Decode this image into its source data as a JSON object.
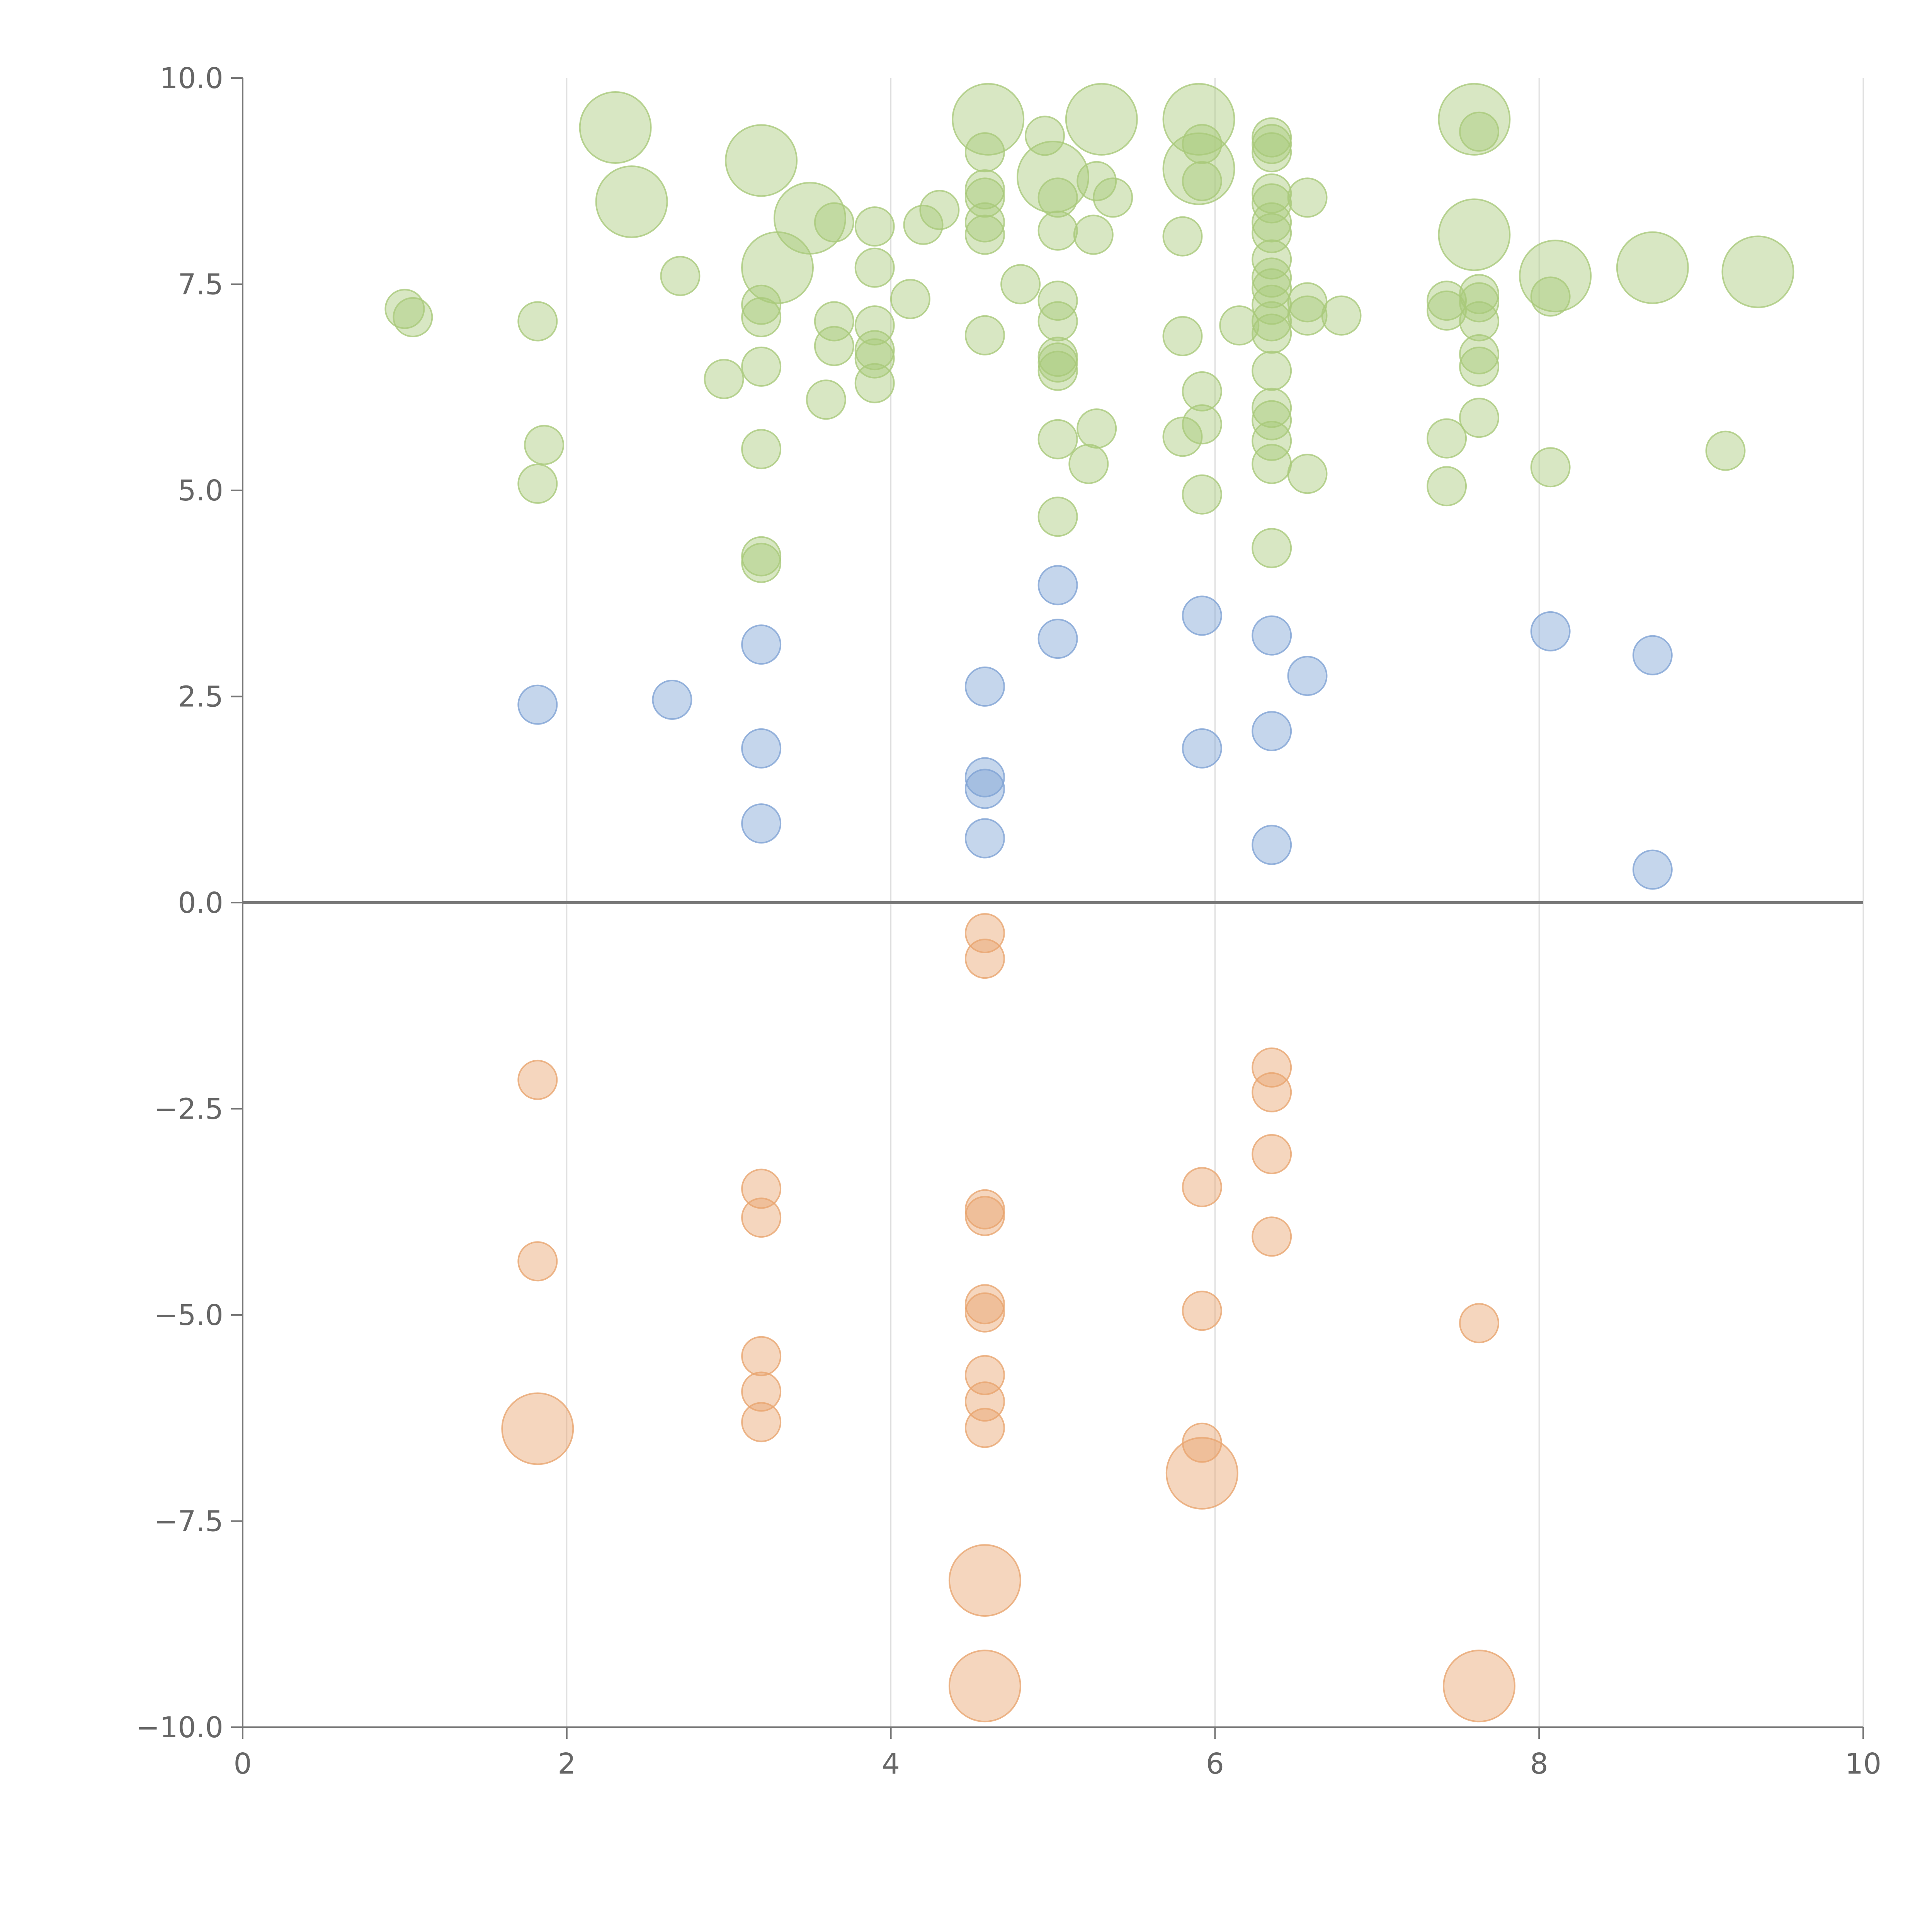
{
  "chart_data": {
    "type": "scatter",
    "title": "",
    "xlabel": "",
    "ylabel": "",
    "xlim": [
      0,
      10
    ],
    "ylim": [
      -10,
      10
    ],
    "x_ticks": [
      0,
      2,
      4,
      6,
      8,
      10
    ],
    "x_tick_labels": [
      "0",
      "2",
      "4",
      "6",
      "8",
      "10"
    ],
    "y_ticks": [
      10,
      7.5,
      5,
      2.5,
      0,
      -2.5,
      -5,
      -7.5,
      -10
    ],
    "y_tick_labels": [
      "10.0",
      "7.5",
      "5.0",
      "2.5",
      "0.0",
      "−2.5",
      "−5.0",
      "−7.5",
      "−10.0"
    ],
    "vertical_grid": true,
    "zero_line": true,
    "legend": "none",
    "colors": {
      "green": "#a9c97a",
      "blue": "#7fa3d4",
      "orange": "#e8a56f",
      "axis": "#777777",
      "grid": "#dddddd",
      "tick_text": "#666666"
    },
    "series": [
      {
        "name": "green",
        "color": "#a9c97a",
        "points": [
          [
            2.3,
            9.4,
            3
          ],
          [
            2.4,
            8.5,
            3
          ],
          [
            3.2,
            9.0,
            3
          ],
          [
            3.3,
            7.7,
            3
          ],
          [
            3.5,
            8.3,
            3
          ],
          [
            4.6,
            9.5,
            3
          ],
          [
            5.3,
            9.5,
            3
          ],
          [
            5.0,
            8.8,
            3
          ],
          [
            5.9,
            9.5,
            3
          ],
          [
            5.9,
            8.9,
            3
          ],
          [
            7.6,
            9.5,
            3
          ],
          [
            7.6,
            8.1,
            3
          ],
          [
            8.1,
            7.6,
            3
          ],
          [
            8.7,
            7.7,
            3
          ],
          [
            9.35,
            7.65,
            3
          ],
          [
            1.0,
            7.2,
            1
          ],
          [
            1.05,
            7.1,
            1
          ],
          [
            1.82,
            7.05,
            1
          ],
          [
            1.86,
            5.55,
            1
          ],
          [
            1.82,
            5.08,
            1
          ],
          [
            2.7,
            7.6,
            1
          ],
          [
            2.97,
            6.35,
            1
          ],
          [
            3.2,
            7.25,
            1
          ],
          [
            3.2,
            7.1,
            1
          ],
          [
            3.2,
            6.5,
            1
          ],
          [
            3.2,
            5.5,
            1
          ],
          [
            3.2,
            4.2,
            1
          ],
          [
            3.2,
            4.12,
            1
          ],
          [
            3.6,
            6.1,
            1
          ],
          [
            3.65,
            7.05,
            1
          ],
          [
            3.65,
            6.75,
            1
          ],
          [
            3.65,
            8.25,
            1
          ],
          [
            3.9,
            8.2,
            1
          ],
          [
            3.9,
            7.7,
            1
          ],
          [
            3.9,
            7.0,
            1
          ],
          [
            3.9,
            6.7,
            1
          ],
          [
            3.9,
            6.6,
            1
          ],
          [
            3.9,
            6.3,
            1
          ],
          [
            4.12,
            7.32,
            1
          ],
          [
            4.2,
            8.22,
            1
          ],
          [
            4.3,
            8.4,
            1
          ],
          [
            4.58,
            9.1,
            1
          ],
          [
            4.58,
            8.65,
            1
          ],
          [
            4.58,
            8.55,
            1
          ],
          [
            4.58,
            8.25,
            1
          ],
          [
            4.58,
            8.1,
            1
          ],
          [
            4.58,
            6.88,
            1
          ],
          [
            4.8,
            7.5,
            1
          ],
          [
            4.95,
            9.3,
            1
          ],
          [
            5.03,
            8.55,
            1
          ],
          [
            5.03,
            8.15,
            1
          ],
          [
            5.03,
            7.3,
            1
          ],
          [
            5.03,
            7.05,
            1
          ],
          [
            5.03,
            6.62,
            1
          ],
          [
            5.03,
            6.55,
            1
          ],
          [
            5.03,
            6.45,
            1
          ],
          [
            5.03,
            5.62,
            1
          ],
          [
            5.03,
            4.68,
            1
          ],
          [
            5.25,
            8.1,
            1
          ],
          [
            5.27,
            8.75,
            1
          ],
          [
            5.37,
            8.55,
            1
          ],
          [
            5.27,
            5.75,
            1
          ],
          [
            5.22,
            5.32,
            1
          ],
          [
            5.8,
            8.08,
            1
          ],
          [
            5.8,
            6.87,
            1
          ],
          [
            5.8,
            5.65,
            1
          ],
          [
            5.92,
            9.2,
            1
          ],
          [
            5.92,
            8.75,
            1
          ],
          [
            5.92,
            6.2,
            1
          ],
          [
            5.92,
            5.8,
            1
          ],
          [
            5.92,
            4.95,
            1
          ],
          [
            6.15,
            7.0,
            1
          ],
          [
            6.35,
            9.28,
            1
          ],
          [
            6.35,
            9.2,
            1
          ],
          [
            6.35,
            9.1,
            1
          ],
          [
            6.35,
            8.6,
            1
          ],
          [
            6.35,
            8.48,
            1
          ],
          [
            6.35,
            8.25,
            1
          ],
          [
            6.35,
            8.12,
            1
          ],
          [
            6.35,
            7.8,
            1
          ],
          [
            6.35,
            7.58,
            1
          ],
          [
            6.35,
            7.45,
            1
          ],
          [
            6.35,
            7.25,
            1
          ],
          [
            6.35,
            7.05,
            1
          ],
          [
            6.35,
            6.9,
            1
          ],
          [
            6.35,
            6.45,
            1
          ],
          [
            6.35,
            6.0,
            1
          ],
          [
            6.35,
            5.85,
            1
          ],
          [
            6.35,
            5.6,
            1
          ],
          [
            6.35,
            5.32,
            1
          ],
          [
            6.35,
            4.3,
            1
          ],
          [
            6.57,
            8.55,
            1
          ],
          [
            6.57,
            7.28,
            1
          ],
          [
            6.57,
            7.12,
            1
          ],
          [
            6.57,
            5.2,
            1
          ],
          [
            6.78,
            7.12,
            1
          ],
          [
            7.43,
            7.3,
            1
          ],
          [
            7.43,
            7.18,
            1
          ],
          [
            7.43,
            5.63,
            1
          ],
          [
            7.43,
            5.05,
            1
          ],
          [
            7.63,
            9.35,
            1
          ],
          [
            7.63,
            7.38,
            1
          ],
          [
            7.63,
            7.28,
            1
          ],
          [
            7.63,
            7.05,
            1
          ],
          [
            7.63,
            6.65,
            1
          ],
          [
            7.63,
            6.5,
            1
          ],
          [
            7.63,
            5.88,
            1
          ],
          [
            8.07,
            7.35,
            1
          ],
          [
            8.07,
            5.28,
            1
          ],
          [
            9.15,
            5.48,
            1
          ]
        ]
      },
      {
        "name": "blue",
        "color": "#7fa3d4",
        "points": [
          [
            1.82,
            2.4,
            1
          ],
          [
            2.65,
            2.46,
            1
          ],
          [
            3.2,
            3.13,
            1
          ],
          [
            3.2,
            1.87,
            1
          ],
          [
            3.2,
            0.96,
            1
          ],
          [
            4.58,
            2.62,
            1
          ],
          [
            4.58,
            1.52,
            1
          ],
          [
            4.58,
            1.38,
            1
          ],
          [
            4.58,
            0.78,
            1
          ],
          [
            5.03,
            3.85,
            1
          ],
          [
            5.03,
            3.2,
            1
          ],
          [
            5.92,
            3.48,
            1
          ],
          [
            5.92,
            1.87,
            1
          ],
          [
            6.35,
            3.24,
            1
          ],
          [
            6.35,
            2.08,
            1
          ],
          [
            6.35,
            0.7,
            1
          ],
          [
            6.57,
            2.75,
            1
          ],
          [
            8.07,
            3.29,
            1
          ],
          [
            8.7,
            3.0,
            1
          ],
          [
            8.7,
            0.4,
            1
          ]
        ]
      },
      {
        "name": "orange",
        "color": "#e8a56f",
        "points": [
          [
            1.82,
            -2.15,
            1
          ],
          [
            1.82,
            -4.35,
            1
          ],
          [
            1.82,
            -6.38,
            3
          ],
          [
            3.2,
            -3.47,
            1
          ],
          [
            3.2,
            -3.82,
            1
          ],
          [
            3.2,
            -5.5,
            1
          ],
          [
            3.2,
            -5.93,
            1
          ],
          [
            3.2,
            -6.3,
            1
          ],
          [
            4.58,
            -0.37,
            1
          ],
          [
            4.58,
            -0.68,
            1
          ],
          [
            4.58,
            -3.72,
            1
          ],
          [
            4.58,
            -3.8,
            1
          ],
          [
            4.58,
            -4.87,
            1
          ],
          [
            4.58,
            -4.97,
            1
          ],
          [
            4.58,
            -5.73,
            1
          ],
          [
            4.58,
            -6.05,
            1
          ],
          [
            4.58,
            -6.37,
            1
          ],
          [
            4.58,
            -8.22,
            3
          ],
          [
            4.58,
            -9.5,
            3
          ],
          [
            5.92,
            -3.45,
            1
          ],
          [
            5.92,
            -4.95,
            1
          ],
          [
            5.92,
            -6.55,
            1
          ],
          [
            5.92,
            -6.92,
            3
          ],
          [
            6.35,
            -2.0,
            1
          ],
          [
            6.35,
            -2.3,
            1
          ],
          [
            6.35,
            -3.05,
            1
          ],
          [
            6.35,
            -4.05,
            1
          ],
          [
            7.63,
            -5.1,
            1
          ],
          [
            7.63,
            -9.5,
            3
          ]
        ]
      }
    ]
  }
}
